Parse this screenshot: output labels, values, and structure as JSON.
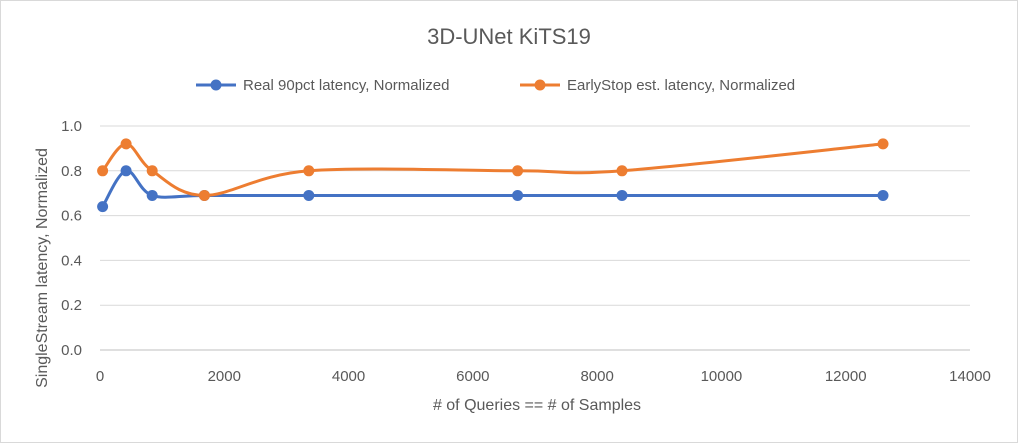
{
  "chart_data": {
    "type": "line",
    "title": "3D-UNet KiTS19",
    "xlabel": "# of Queries == # of Samples",
    "ylabel": "SingleStream latency, Normalized",
    "xlim": [
      0,
      14000
    ],
    "ylim": [
      0,
      1.0
    ],
    "x_ticks": [
      "0",
      "2000",
      "4000",
      "6000",
      "8000",
      "10000",
      "12000",
      "14000"
    ],
    "y_ticks": [
      "0.0",
      "0.2",
      "0.4",
      "0.6",
      "0.8",
      "1.0"
    ],
    "grid": true,
    "legend_position": "top",
    "smooth": true,
    "series": [
      {
        "name": "Real 90pct latency, Normalized",
        "color": "#4472c4",
        "x": [
          42,
          420,
          840,
          1680,
          3360,
          6720,
          8400,
          12600
        ],
        "y": [
          0.64,
          0.8,
          0.69,
          0.69,
          0.69,
          0.69,
          0.69,
          0.69
        ]
      },
      {
        "name": "EarlyStop est. latency, Normalized",
        "color": "#ed7d31",
        "x": [
          42,
          420,
          840,
          1680,
          3360,
          6720,
          8400,
          12600
        ],
        "y": [
          0.8,
          0.92,
          0.8,
          0.69,
          0.8,
          0.8,
          0.8,
          0.92
        ]
      }
    ]
  }
}
